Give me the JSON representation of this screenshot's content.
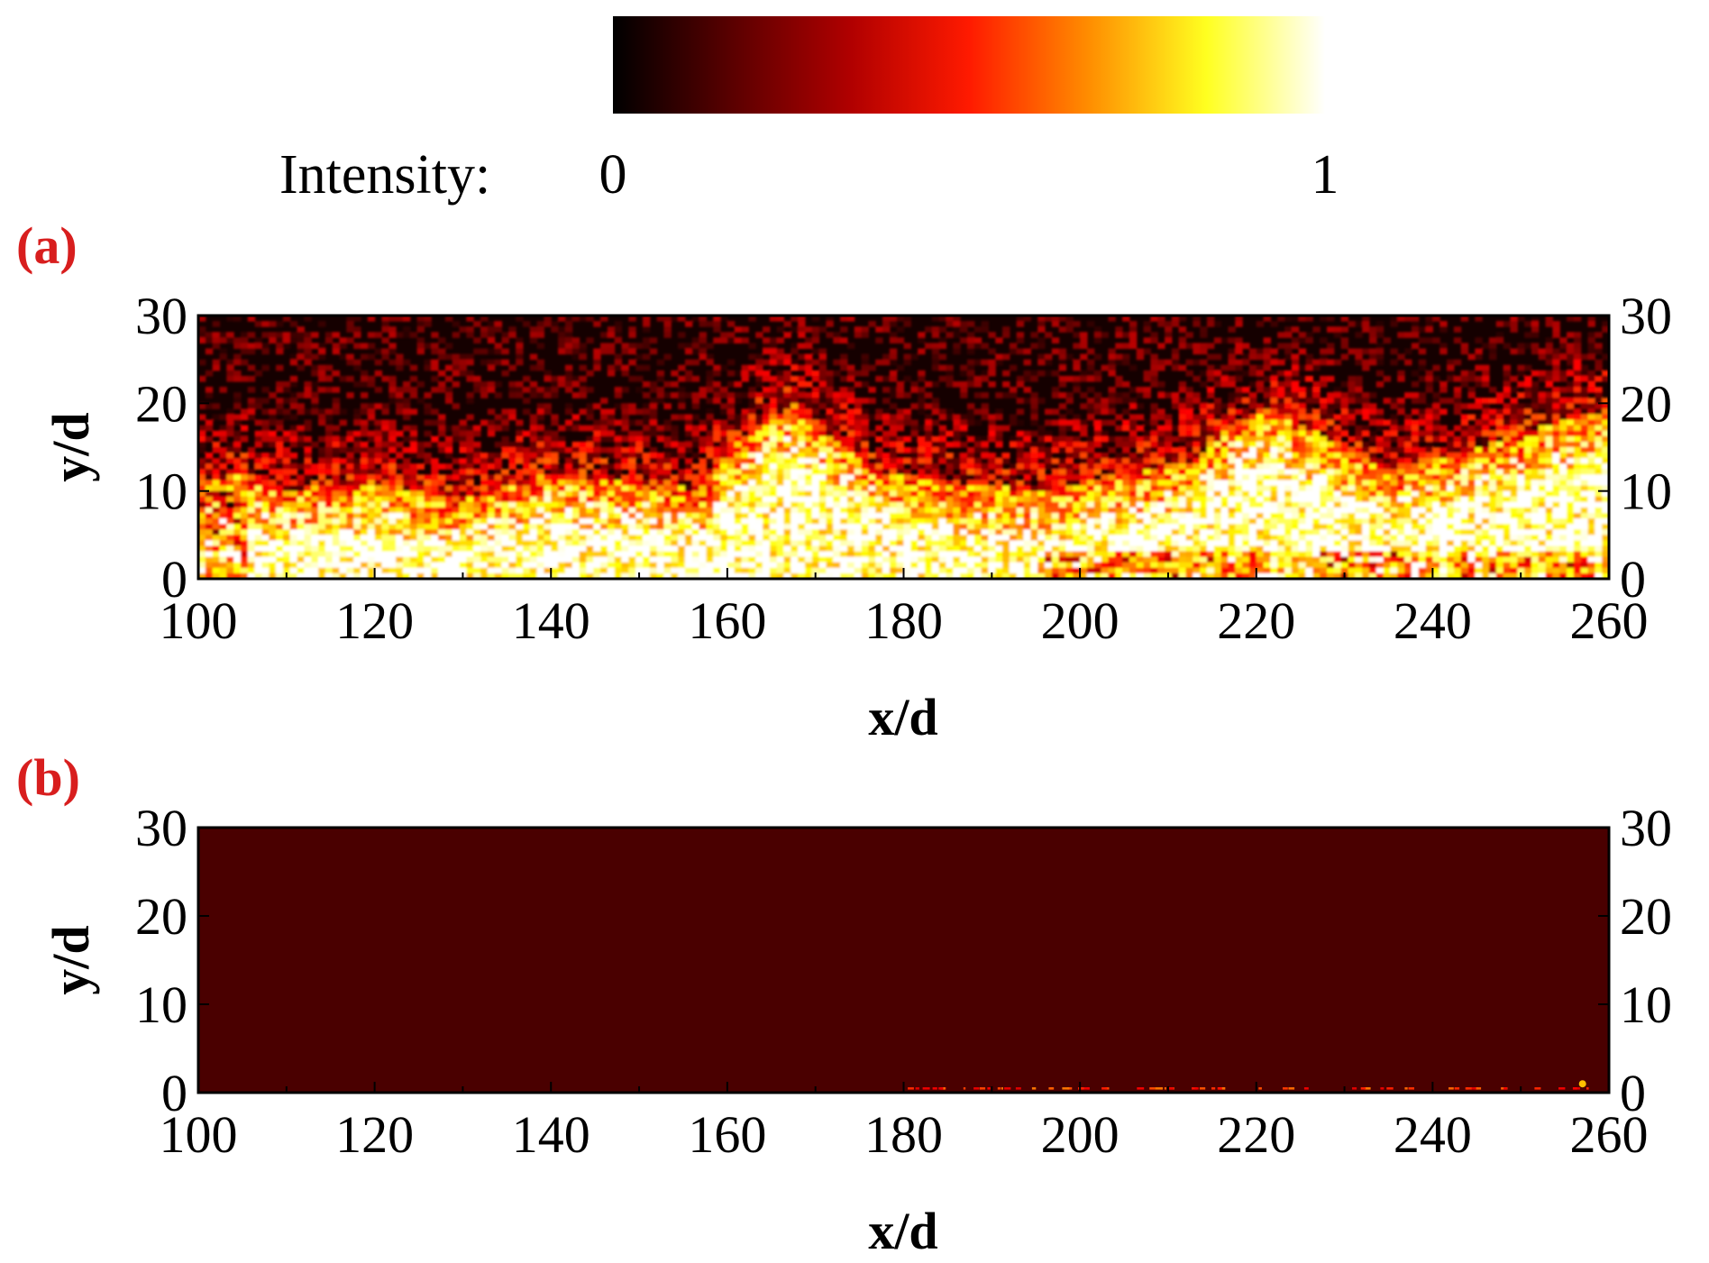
{
  "colorbar": {
    "label": "Intensity:",
    "min_label": "0",
    "max_label": "1",
    "colors": [
      "#000000",
      "#5a0000",
      "#b00000",
      "#ff1a00",
      "#ff8c00",
      "#ffff20",
      "#ffffff"
    ]
  },
  "panel_label_color": "#d81e1e",
  "chart_data": [
    {
      "type": "heatmap",
      "panel_label": "(a)",
      "xlabel": "x/d",
      "ylabel": "y/d",
      "xlim": [
        100,
        260
      ],
      "ylim": [
        0,
        30
      ],
      "xticks": [
        100,
        120,
        140,
        160,
        180,
        200,
        220,
        240,
        260
      ],
      "yticks": [
        0,
        10,
        20,
        30
      ],
      "right_yticks": [
        0,
        10,
        20,
        30
      ],
      "colorscale": "hot",
      "vmin": 0,
      "vmax": 1,
      "bright_layer_edge": {
        "x": [
          100,
          104,
          110,
          120,
          130,
          140,
          150,
          157,
          160,
          164,
          168,
          172,
          178,
          185,
          195,
          205,
          212,
          218,
          222,
          228,
          235,
          245,
          255,
          260
        ],
        "y": [
          10,
          12,
          10,
          11,
          9,
          12,
          11,
          10,
          15,
          18,
          20,
          16,
          12,
          11,
          10,
          12,
          13,
          18,
          19,
          16,
          12,
          15,
          18,
          19
        ]
      }
    },
    {
      "type": "heatmap",
      "panel_label": "(b)",
      "xlabel": "x/d",
      "ylabel": "y/d",
      "xlim": [
        100,
        260
      ],
      "ylim": [
        0,
        30
      ],
      "xticks": [
        100,
        120,
        140,
        160,
        180,
        200,
        220,
        240,
        260
      ],
      "yticks": [
        0,
        10,
        20,
        30
      ],
      "right_yticks": [
        0,
        10,
        20,
        30
      ],
      "colorscale": "hot",
      "vmin": 0,
      "vmax": 1,
      "background_intensity": 0.28,
      "near_wall_traces": {
        "x_range": [
          178,
          258
        ],
        "y": 0.4,
        "spot": {
          "x": 257,
          "y": 1,
          "intensity": 0.7
        }
      }
    }
  ]
}
